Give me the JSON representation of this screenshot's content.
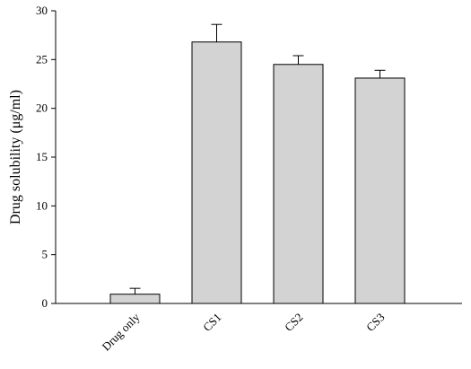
{
  "chart_data": {
    "type": "bar",
    "y_label": "Drug solubility (μg/ml)",
    "categories": [
      "Drug only",
      "CS1",
      "CS2",
      "CS3"
    ],
    "values": [
      0.95,
      26.8,
      24.5,
      23.1
    ],
    "errors": [
      0.6,
      1.8,
      0.9,
      0.8
    ],
    "color": "#d3d3d3",
    "ylim": [
      0,
      30
    ],
    "yticks": [
      0,
      5,
      10,
      15,
      20,
      25,
      30
    ],
    "grid": false
  }
}
